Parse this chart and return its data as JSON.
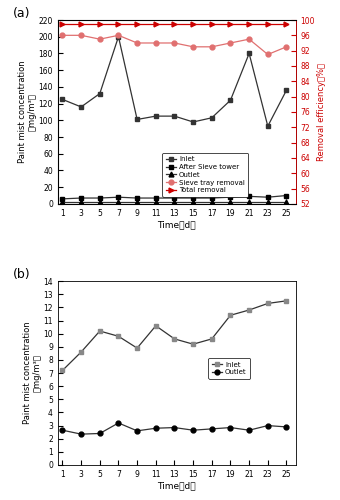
{
  "time": [
    1,
    3,
    5,
    7,
    9,
    11,
    13,
    15,
    17,
    19,
    21,
    23,
    25
  ],
  "panel_a": {
    "inlet": [
      125,
      116,
      132,
      200,
      101,
      105,
      105,
      98,
      103,
      124,
      180,
      93,
      136
    ],
    "after_sieve": [
      6,
      7,
      7,
      8,
      7,
      7,
      7,
      7,
      7,
      8,
      9,
      8,
      10
    ],
    "outlet": [
      2,
      2,
      2,
      2,
      2,
      2,
      2,
      2,
      2,
      2,
      2,
      2,
      2
    ],
    "sieve_tray_removal": [
      96,
      96,
      95,
      96,
      94,
      94,
      94,
      93,
      93,
      94,
      95,
      91,
      93
    ],
    "total_removal": [
      99,
      99,
      99,
      99,
      99,
      99,
      99,
      99,
      99,
      99,
      99,
      99,
      99
    ],
    "ylim_left": [
      0,
      220
    ],
    "ylim_right": [
      52,
      100
    ],
    "yticks_left": [
      0,
      20,
      40,
      60,
      80,
      100,
      120,
      140,
      160,
      180,
      200,
      220
    ],
    "yticks_right": [
      52,
      56,
      60,
      64,
      68,
      72,
      76,
      80,
      84,
      88,
      92,
      96,
      100
    ]
  },
  "panel_b": {
    "inlet": [
      7.2,
      8.6,
      10.2,
      9.8,
      8.9,
      10.6,
      9.6,
      9.2,
      9.6,
      11.4,
      11.8,
      12.3,
      12.5
    ],
    "outlet": [
      2.65,
      2.35,
      2.4,
      3.2,
      2.6,
      2.8,
      2.85,
      2.65,
      2.75,
      2.85,
      2.65,
      3.0,
      2.9
    ],
    "ylim": [
      0,
      14
    ],
    "yticks": [
      0,
      1,
      2,
      3,
      4,
      5,
      6,
      7,
      8,
      9,
      10,
      11,
      12,
      13,
      14
    ]
  },
  "color_dark": "#333333",
  "color_red": "#cc0000",
  "color_red_light": "#e07070",
  "bg_color": "#ffffff"
}
